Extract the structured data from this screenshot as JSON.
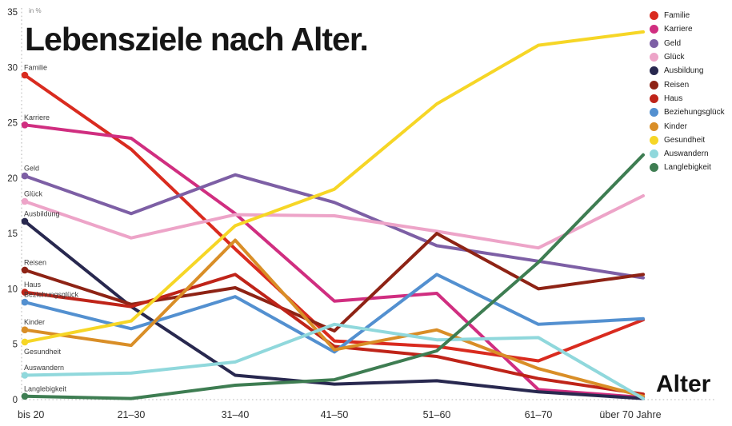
{
  "title": "Lebensziele nach Alter.",
  "y_axis_unit": "in %",
  "x_axis_title": "Alter",
  "chart_data": {
    "type": "line",
    "categories": [
      "bis 20",
      "21–30",
      "31–40",
      "41–50",
      "51–60",
      "61–70",
      "über 70 Jahre"
    ],
    "ylim": [
      0,
      35
    ],
    "yticks": [
      0,
      5,
      10,
      15,
      20,
      25,
      30,
      35
    ],
    "grid": "dotted y-axis and dotted zero baseline only",
    "legend_position": "top-right",
    "series_labels_at_line_start": true,
    "series": [
      {
        "name": "Familie",
        "color": "#d92b1f",
        "label_below": false,
        "values": [
          29.3,
          22.6,
          13.6,
          5.3,
          4.8,
          3.5,
          7.2
        ]
      },
      {
        "name": "Karriere",
        "color": "#d02e80",
        "label_below": false,
        "values": [
          24.8,
          23.6,
          16.8,
          8.9,
          9.6,
          0.9,
          0.2
        ]
      },
      {
        "name": "Geld",
        "color": "#7d5fa5",
        "label_below": false,
        "values": [
          20.2,
          16.8,
          20.3,
          17.8,
          13.9,
          12.5,
          11.0
        ]
      },
      {
        "name": "Glück",
        "color": "#eda4c8",
        "label_below": false,
        "values": [
          17.9,
          14.6,
          16.7,
          16.6,
          15.2,
          13.7,
          18.4
        ]
      },
      {
        "name": "Ausbildung",
        "color": "#28284f",
        "label_below": false,
        "values": [
          16.1,
          8.4,
          2.2,
          1.4,
          1.7,
          0.7,
          0.1
        ]
      },
      {
        "name": "Reisen",
        "color": "#8e2315",
        "label_below": false,
        "values": [
          11.7,
          8.6,
          10.1,
          6.2,
          15.0,
          10.0,
          11.3
        ]
      },
      {
        "name": "Haus",
        "color": "#bf2419",
        "label_below": false,
        "values": [
          9.7,
          8.4,
          11.3,
          4.8,
          3.9,
          1.9,
          0.5
        ]
      },
      {
        "name": "Beziehungsglück",
        "color": "#5390d0",
        "label_below": false,
        "values": [
          8.8,
          6.4,
          9.3,
          4.3,
          11.3,
          6.8,
          7.3
        ]
      },
      {
        "name": "Kinder",
        "color": "#d98e27",
        "label_below": false,
        "values": [
          6.3,
          4.9,
          14.4,
          4.5,
          6.3,
          2.8,
          0.3
        ]
      },
      {
        "name": "Gesundheit",
        "color": "#f6d626",
        "label_below": true,
        "values": [
          5.2,
          7.1,
          15.7,
          19.0,
          26.7,
          32.0,
          33.2
        ]
      },
      {
        "name": "Auswandern",
        "color": "#90d8dc",
        "label_below": false,
        "values": [
          2.2,
          2.4,
          3.4,
          6.8,
          5.4,
          5.6,
          0.1
        ]
      },
      {
        "name": "Langlebigkeit",
        "color": "#3e7d52",
        "label_below": false,
        "values": [
          0.3,
          0.1,
          1.3,
          1.8,
          4.4,
          12.4,
          22.1
        ]
      }
    ]
  }
}
